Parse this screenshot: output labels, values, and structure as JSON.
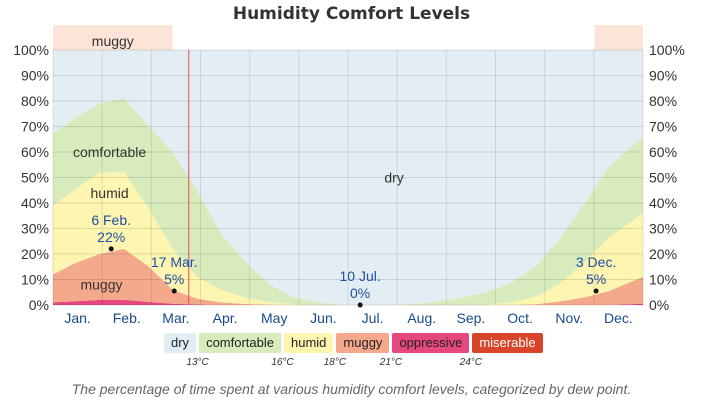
{
  "title": "Humidity Comfort Levels",
  "caption": "The percentage of time spent at various humidity comfort levels, categorized by dew point.",
  "chart_data": {
    "type": "area",
    "stacked": true,
    "y_unit": "%",
    "ylim": [
      0,
      100
    ],
    "y_ticks": [
      "0%",
      "10%",
      "20%",
      "30%",
      "40%",
      "50%",
      "60%",
      "70%",
      "80%",
      "90%",
      "100%"
    ],
    "x_range": [
      1,
      366
    ],
    "month_ticks": [
      "Jan.",
      "Feb.",
      "Mar.",
      "Apr.",
      "May",
      "Jun.",
      "Jul.",
      "Aug.",
      "Sep.",
      "Oct.",
      "Nov.",
      "Dec."
    ],
    "x": [
      1,
      15,
      30,
      45,
      60,
      75,
      90,
      105,
      120,
      135,
      150,
      165,
      180,
      195,
      210,
      225,
      240,
      255,
      270,
      285,
      300,
      315,
      330,
      345,
      366
    ],
    "series": [
      {
        "name": "oppressive",
        "color": "#e6477f",
        "values": [
          1,
          1.5,
          2,
          2,
          1.2,
          0.5,
          0.2,
          0,
          0,
          0,
          0,
          0,
          0,
          0,
          0,
          0,
          0,
          0,
          0,
          0,
          0,
          0,
          0,
          0,
          0.5
        ]
      },
      {
        "name": "muggy",
        "color": "#f5a98c",
        "values": [
          11,
          15,
          18,
          20,
          14,
          5.5,
          2.3,
          1,
          0.4,
          0.1,
          0,
          0,
          0,
          0,
          0,
          0,
          0,
          0,
          0,
          0,
          0.3,
          1.5,
          3,
          5.5,
          10.5
        ]
      },
      {
        "name": "humid",
        "color": "#fdf5b0",
        "values": [
          27,
          29,
          32,
          30,
          23,
          16,
          8.5,
          5,
          2.5,
          1,
          0.3,
          0,
          0,
          0,
          0,
          0,
          0,
          0,
          0.2,
          1,
          3,
          7,
          14,
          21,
          25
        ]
      },
      {
        "name": "comfortable",
        "color": "#d8ebbd",
        "values": [
          28,
          28,
          27,
          29,
          32,
          38,
          34,
          22,
          14,
          7,
          2.7,
          1,
          0,
          0,
          0,
          0.5,
          1.5,
          3,
          5,
          8,
          12,
          18,
          23,
          28,
          30
        ]
      },
      {
        "name": "dry",
        "color": "#e3eef4",
        "values": [
          33,
          26.5,
          21,
          19,
          29.8,
          40,
          55,
          72,
          83.1,
          91.9,
          97,
          99,
          100,
          100,
          100,
          99.5,
          98.5,
          97,
          94.8,
          91,
          84.7,
          73.5,
          60,
          45.5,
          34
        ]
      }
    ],
    "band_labels": [
      {
        "text": "dry",
        "x": 212,
        "y": 50
      },
      {
        "text": "comfortable",
        "x": 36,
        "y": 60
      },
      {
        "text": "humid",
        "x": 36,
        "y": 44
      },
      {
        "text": "muggy",
        "x": 31,
        "y": 8
      }
    ],
    "annotations": [
      {
        "date": "6 Feb.",
        "value": "22%",
        "x": 37,
        "y": 22,
        "above": true
      },
      {
        "date": "17 Mar.",
        "value": "5%",
        "x": 76,
        "y": 5.5,
        "above": true
      },
      {
        "date": "10 Jul.",
        "value": "0%",
        "x": 191,
        "y": 0,
        "above": true
      },
      {
        "date": "3 Dec.",
        "value": "5%",
        "x": 337,
        "y": 5.5,
        "above": true
      }
    ],
    "top_muggy_label": "muggy",
    "muggy_season": [
      [
        1,
        75
      ],
      [
        336,
        366
      ]
    ],
    "today_marker_x": 85,
    "grid": true
  },
  "legend": {
    "items": [
      {
        "label": "dry",
        "color": "#e3eef4"
      },
      {
        "label": "comfortable",
        "color": "#d8ebbd"
      },
      {
        "label": "humid",
        "color": "#fdf5b0"
      },
      {
        "label": "muggy",
        "color": "#f5a98c"
      },
      {
        "label": "oppressive",
        "color": "#e6477f"
      },
      {
        "label": "miserable",
        "color": "#d9452b"
      }
    ],
    "thresholds": [
      "13°C",
      "16°C",
      "18°C",
      "21°C",
      "24°C"
    ]
  }
}
